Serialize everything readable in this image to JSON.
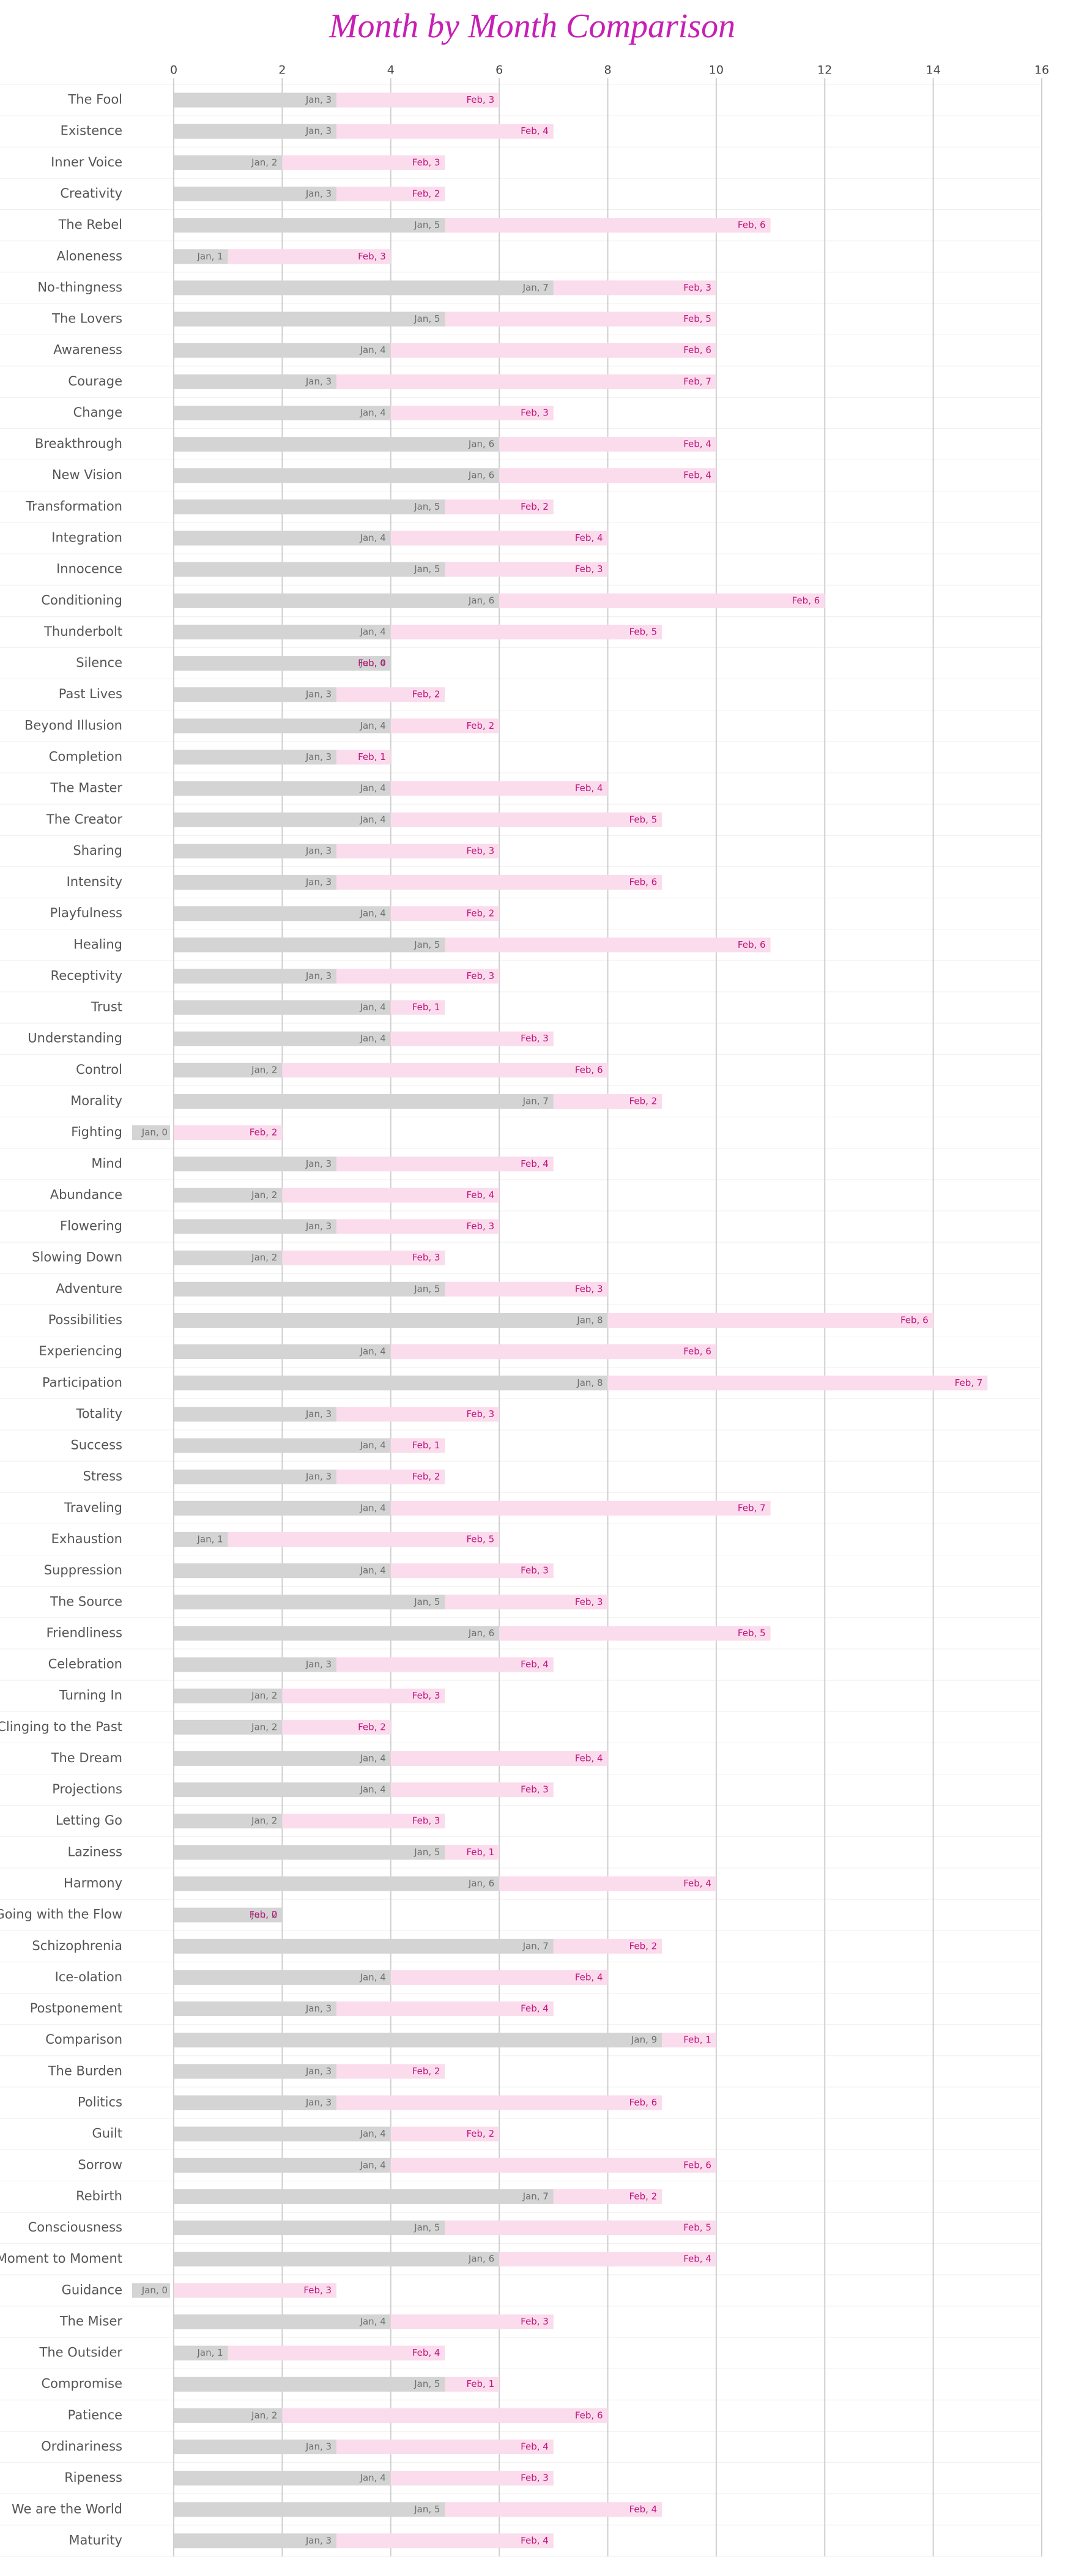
{
  "chart_data": {
    "type": "stacked-barh",
    "title": "Month by Month Comparison",
    "categories": [
      "The Fool",
      "Existence",
      "Inner Voice",
      "Creativity",
      "The Rebel",
      "Aloneness",
      "No-thingness",
      "The Lovers",
      "Awareness",
      "Courage",
      "Change",
      "Breakthrough",
      "New Vision",
      "Transformation",
      "Integration",
      "Innocence",
      "Conditioning",
      "Thunderbolt",
      "Silence",
      "Past Lives",
      "Beyond Illusion",
      "Completion",
      "The Master",
      "The Creator",
      "Sharing",
      "Intensity",
      "Playfulness",
      "Healing",
      "Receptivity",
      "Trust",
      "Understanding",
      "Control",
      "Morality",
      "Fighting",
      "Mind",
      "Abundance",
      "Flowering",
      "Slowing Down",
      "Adventure",
      "Possibilities",
      "Experiencing",
      "Participation",
      "Totality",
      "Success",
      "Stress",
      "Traveling",
      "Exhaustion",
      "Suppression",
      "The Source",
      "Friendliness",
      "Celebration",
      "Turning In",
      "Clinging to the Past",
      "The Dream",
      "Projections",
      "Letting Go",
      "Laziness",
      "Harmony",
      "Going with the Flow",
      "Schizophrenia",
      "Ice-olation",
      "Postponement",
      "Comparison",
      "The Burden",
      "Politics",
      "Guilt",
      "Sorrow",
      "Rebirth",
      "Consciousness",
      "Moment to Moment",
      "Guidance",
      "The Miser",
      "The Outsider",
      "Compromise",
      "Patience",
      "Ordinariness",
      "Ripeness",
      "We are the World",
      "Maturity"
    ],
    "series": [
      {
        "name": "Jan",
        "color": "#d4d4d4",
        "label_color": "#6e6e6e",
        "values": [
          3,
          3,
          2,
          3,
          5,
          1,
          7,
          5,
          4,
          3,
          4,
          6,
          6,
          5,
          4,
          5,
          6,
          4,
          4,
          3,
          4,
          3,
          4,
          4,
          3,
          3,
          4,
          5,
          3,
          4,
          4,
          2,
          7,
          0,
          3,
          2,
          3,
          2,
          5,
          8,
          4,
          8,
          3,
          4,
          3,
          4,
          1,
          4,
          5,
          6,
          3,
          2,
          2,
          4,
          4,
          2,
          5,
          6,
          2,
          7,
          4,
          3,
          9,
          3,
          3,
          4,
          4,
          7,
          5,
          6,
          0,
          4,
          1,
          5,
          2,
          3,
          4,
          5,
          3
        ],
        "value_labels": [
          "Jan, 3",
          "Jan, 3",
          "Jan, 2",
          "Jan, 3",
          "Jan, 5",
          "Jan, 1",
          "Jan, 7",
          "Jan, 5",
          "Jan, 4",
          "Jan, 3",
          "Jan, 4",
          "Jan, 6",
          "Jan, 6",
          "Jan, 5",
          "Jan, 4",
          "Jan, 5",
          "Jan, 6",
          "Jan, 4",
          "Jan, 4",
          "Jan, 3",
          "Jan, 4",
          "Jan, 3",
          "Jan, 4",
          "Jan, 4",
          "Jan, 3",
          "Jan, 3",
          "Jan, 4",
          "Jan, 5",
          "Jan, 3",
          "Jan, 4",
          "Jan, 4",
          "Jan, 2",
          "Jan, 7",
          "Jan, 0",
          "Jan, 3",
          "Jan, 2",
          "Jan, 3",
          "Jan, 2",
          "Jan, 5",
          "Jan, 8",
          "Jan, 4",
          "Jan, 8",
          "Jan, 3",
          "Jan, 4",
          "Jan, 3",
          "Jan, 4",
          "Jan, 1",
          "Jan, 4",
          "Jan, 5",
          "Jan, 6",
          "Jan, 3",
          "Jan, 2",
          "Jan, 2",
          "Jan, 4",
          "Jan, 4",
          "Jan, 2",
          "Jan, 5",
          "Jan, 6",
          "Jan, 2",
          "Jan, 7",
          "Jan, 4",
          "Jan, 3",
          "Jan, 9",
          "Jan, 3",
          "Jan, 3",
          "Jan, 4",
          "Jan, 4",
          "Jan, 7",
          "Jan, 5",
          "Jan, 6",
          "Jan, 0",
          "Jan, 4",
          "Jan, 1",
          "Jan, 5",
          "Jan, 2",
          "Jan, 3",
          "Jan, 4",
          "Jan, 5",
          "Jan, 3"
        ]
      },
      {
        "name": "Feb",
        "color": "#fadcec",
        "label_color": "#c0137e",
        "values": [
          3,
          4,
          3,
          2,
          6,
          3,
          3,
          5,
          6,
          7,
          3,
          4,
          4,
          2,
          4,
          3,
          6,
          5,
          0,
          2,
          2,
          1,
          4,
          5,
          3,
          6,
          2,
          6,
          3,
          1,
          3,
          6,
          2,
          2,
          4,
          4,
          3,
          3,
          3,
          6,
          6,
          7,
          3,
          1,
          2,
          7,
          5,
          3,
          3,
          5,
          4,
          3,
          2,
          4,
          3,
          3,
          1,
          4,
          0,
          2,
          4,
          4,
          1,
          2,
          6,
          2,
          6,
          2,
          5,
          4,
          3,
          3,
          4,
          1,
          6,
          4,
          3,
          4,
          4
        ],
        "value_labels": [
          "Feb, 3",
          "Feb, 4",
          "Feb, 3",
          "Feb, 2",
          "Feb, 6",
          "Feb, 3",
          "Feb, 3",
          "Feb, 5",
          "Feb, 6",
          "Feb, 7",
          "Feb, 3",
          "Feb, 4",
          "Feb, 4",
          "Feb, 2",
          "Feb, 4",
          "Feb, 3",
          "Feb, 6",
          "Feb, 5",
          "Feb, 0",
          "Feb, 2",
          "Feb, 2",
          "Feb, 1",
          "Feb, 4",
          "Feb, 5",
          "Feb, 3",
          "Feb, 6",
          "Feb, 2",
          "Feb, 6",
          "Feb, 3",
          "Feb, 1",
          "Feb, 3",
          "Feb, 6",
          "Feb, 2",
          "Feb, 2",
          "Feb, 4",
          "Feb, 4",
          "Feb, 3",
          "Feb, 3",
          "Feb, 3",
          "Feb, 6",
          "Feb, 6",
          "Feb, 7",
          "Feb, 3",
          "Feb, 1",
          "Feb, 2",
          "Feb, 7",
          "Feb, 5",
          "Feb, 3",
          "Feb, 3",
          "Feb, 5",
          "Feb, 4",
          "Feb, 3",
          "Feb, 2",
          "Feb, 4",
          "Feb, 3",
          "Feb, 3",
          "Feb, 1",
          "Feb, 4",
          "Feb, 0",
          "Feb, 2",
          "Feb, 4",
          "Feb, 4",
          "Feb, 1",
          "Feb, 2",
          "Feb, 6",
          "Feb, 2",
          "Feb, 6",
          "Feb, 2",
          "Feb, 5",
          "Feb, 4",
          "Feb, 3",
          "Feb, 3",
          "Feb, 4",
          "Feb, 1",
          "Feb, 6",
          "Feb, 4",
          "Feb, 3",
          "Feb, 4",
          "Feb, 4"
        ]
      }
    ],
    "xlim": [
      0,
      16
    ],
    "xticks": [
      0,
      2,
      4,
      6,
      8,
      10,
      12,
      14,
      16
    ],
    "grid": true,
    "title_color": "#c71fb4"
  }
}
